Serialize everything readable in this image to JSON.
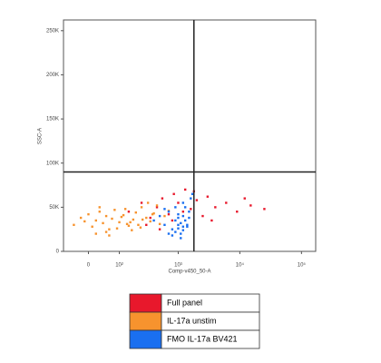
{
  "chart_data": {
    "type": "scatter",
    "x_label": "Comp-v450_50-A",
    "y_label": "SSC-A",
    "xscale": "biexponential",
    "xlim": [
      -75,
      170000
    ],
    "ylim": [
      0,
      262144
    ],
    "xticks": [
      0,
      {
        "value": 100,
        "label": "10²"
      },
      {
        "value": 1000,
        "label": "10³"
      },
      {
        "value": 10000,
        "label": "10⁴"
      },
      {
        "value": 100000,
        "label": "10⁵"
      }
    ],
    "yticks": [
      0,
      {
        "value": 50000,
        "label": "50K"
      },
      {
        "value": 100000,
        "label": "100K"
      },
      {
        "value": 150000,
        "label": "150K"
      },
      {
        "value": 200000,
        "label": "200K"
      },
      {
        "value": 250000,
        "label": "250K"
      }
    ],
    "gate": {
      "x": 1800,
      "y": 90000
    },
    "series": [
      {
        "name": "Full panel",
        "color": "#e8182c",
        "x": [
          150,
          250,
          350,
          450,
          550,
          700,
          850,
          1000,
          1300,
          1600,
          2000,
          2500,
          3000,
          4000,
          6000,
          9000,
          15000,
          25000,
          300,
          500,
          800,
          1200,
          1800,
          3500,
          12000
        ],
        "y": [
          45000,
          55000,
          38000,
          50000,
          60000,
          42000,
          65000,
          55000,
          70000,
          48000,
          58000,
          40000,
          62000,
          50000,
          55000,
          45000,
          52000,
          48000,
          30000,
          25000,
          35000,
          45000,
          68000,
          35000,
          60000
        ]
      },
      {
        "name": "IL-17a unstim",
        "color": "#f7932e",
        "x": [
          -40,
          -20,
          0,
          10,
          20,
          30,
          40,
          50,
          60,
          70,
          80,
          100,
          120,
          150,
          180,
          200,
          220,
          250,
          300,
          350,
          400,
          450,
          500,
          600,
          700,
          20,
          50,
          90,
          130,
          170,
          240,
          320,
          30,
          60,
          110,
          160,
          260,
          380,
          -10,
          140
        ],
        "y": [
          30000,
          38000,
          42000,
          28000,
          35000,
          45000,
          32000,
          40000,
          25000,
          37000,
          47000,
          33000,
          41000,
          29000,
          36000,
          44000,
          30000,
          50000,
          38000,
          34000,
          43000,
          52000,
          31000,
          40000,
          46000,
          20000,
          22000,
          26000,
          48000,
          24000,
          27000,
          55000,
          50000,
          18000,
          39000,
          33000,
          36000,
          42000,
          34000,
          31000
        ]
      },
      {
        "name": "FMO IL-17a BV421",
        "color": "#1a6ff0",
        "x": [
          400,
          500,
          600,
          700,
          800,
          900,
          1000,
          1100,
          1200,
          1300,
          1400,
          1500,
          1600,
          800,
          900,
          1000,
          1100,
          1200,
          1300,
          1000,
          1100,
          1200,
          600,
          700,
          1400,
          1500,
          1700,
          900,
          1000,
          1200
        ],
        "y": [
          35000,
          40000,
          30000,
          45000,
          25000,
          35000,
          30000,
          20000,
          40000,
          50000,
          28000,
          45000,
          60000,
          18000,
          22000,
          26000,
          32000,
          24000,
          35000,
          42000,
          15000,
          55000,
          48000,
          20000,
          30000,
          38000,
          65000,
          50000,
          38000,
          28000
        ]
      }
    ]
  }
}
